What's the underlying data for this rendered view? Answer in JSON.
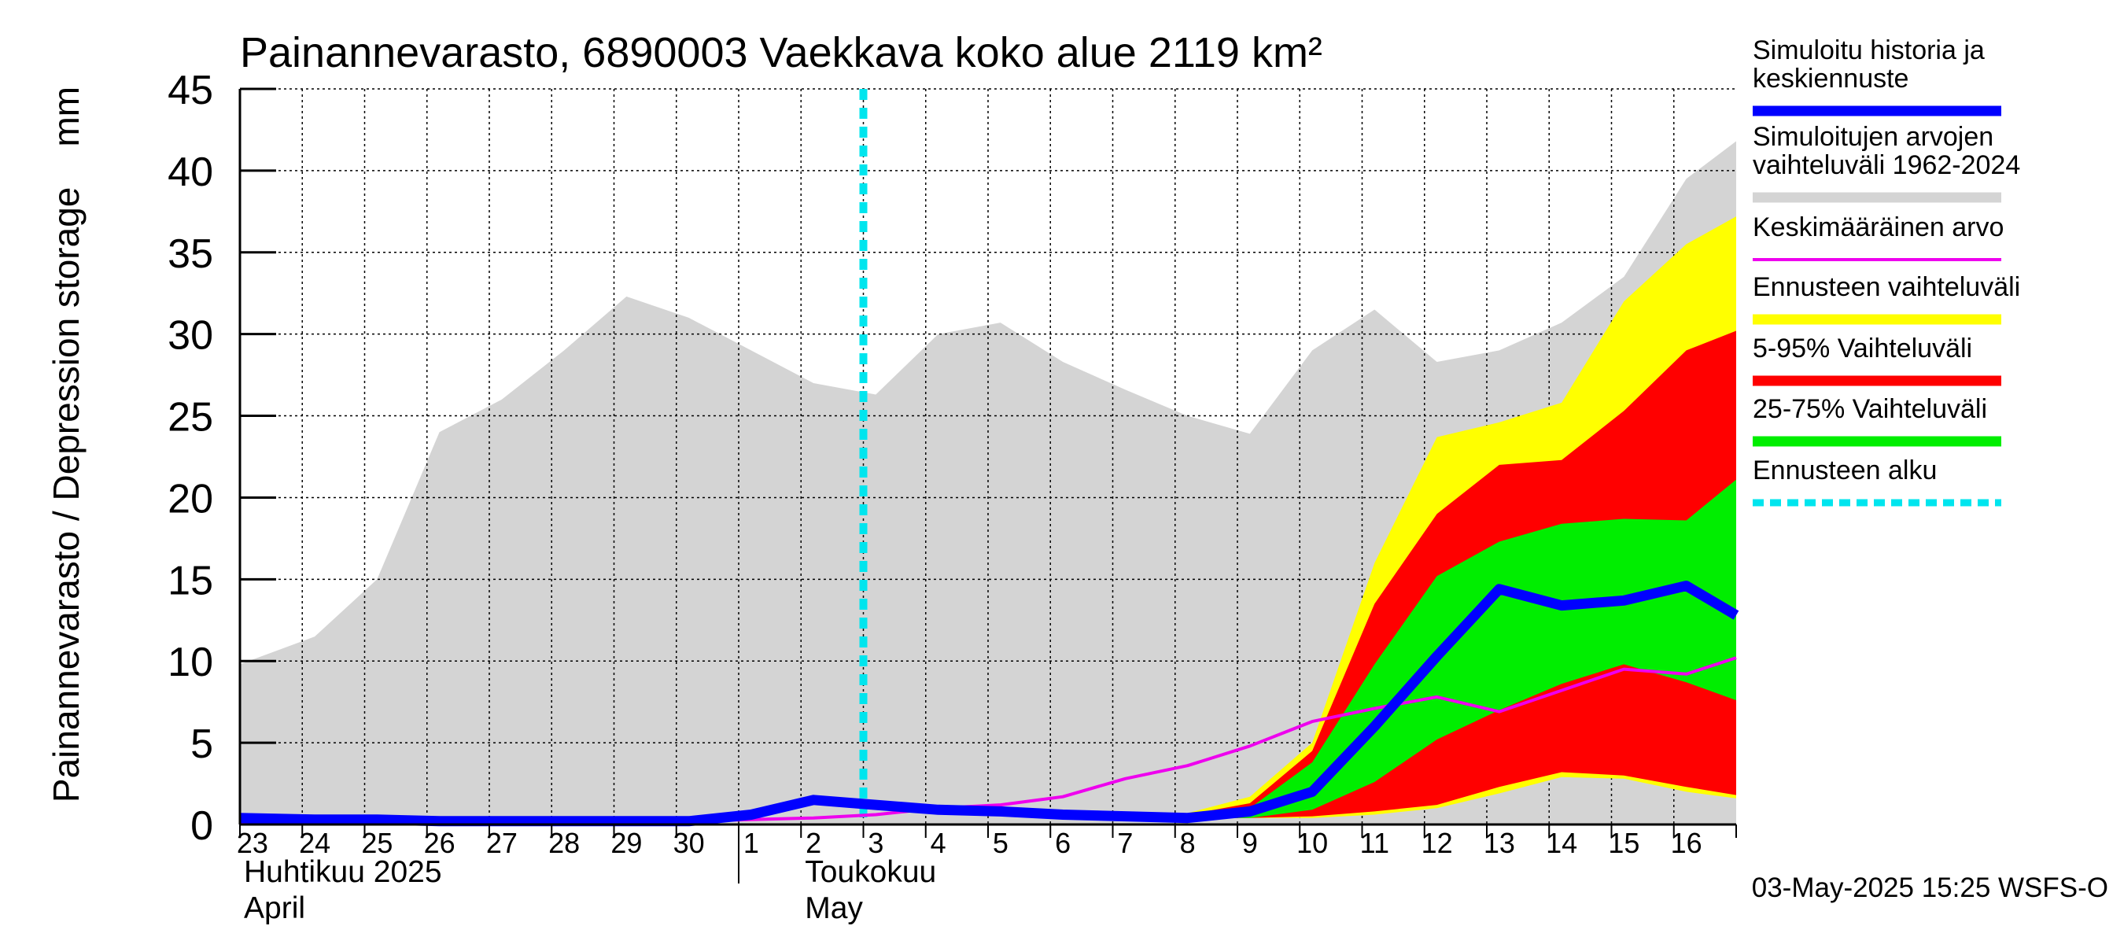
{
  "chart_data": {
    "type": "area",
    "title": "Painannevarasto, 6890003 Vaekkava koko alue 2119 km²",
    "ylabel": "Painannevarasto / Depression storage    mm",
    "ylim": [
      0,
      45
    ],
    "yticks": [
      "0",
      "5",
      "10",
      "15",
      "20",
      "25",
      "30",
      "35",
      "40",
      "45"
    ],
    "grid": true,
    "x_day_labels": [
      "23",
      "24",
      "25",
      "26",
      "27",
      "28",
      "29",
      "30",
      "1",
      "2",
      "3",
      "4",
      "5",
      "6",
      "7",
      "8",
      "9",
      "10",
      "11",
      "12",
      "13",
      "14",
      "15",
      "16"
    ],
    "x_month_labels": [
      {
        "fi": "Huhtikuu  2025",
        "en": "April",
        "day_index": 0
      },
      {
        "fi": "Toukokuu",
        "en": "May",
        "day_index": 9
      }
    ],
    "x_range": [
      -0.2,
      23.8
    ],
    "forecast_start_x": 9.8,
    "timestamp": "03-May-2025 15:25 WSFS-O",
    "colors": {
      "history_range": "#d4d4d4",
      "forecast_range": "#ffff00",
      "band_5_95": "#ff0000",
      "band_25_75": "#00ee00",
      "median": "#0000ff",
      "mean": "#ee00ee",
      "forecast_start": "#00e5ee"
    },
    "legend": [
      {
        "label_lines": [
          "Simuloitu historia ja",
          "keskiennuste"
        ],
        "key": "median"
      },
      {
        "label_lines": [
          "Simuloitujen arvojen",
          "vaihteluväli 1962-2024"
        ],
        "key": "history_range"
      },
      {
        "label_lines": [
          "Keskimääräinen arvo"
        ],
        "key": "mean"
      },
      {
        "label_lines": [
          "Ennusteen vaihteluväli"
        ],
        "key": "forecast_range"
      },
      {
        "label_lines": [
          "5-95% Vaihteluväli"
        ],
        "key": "band_5_95"
      },
      {
        "label_lines": [
          "25-75% Vaihteluväli"
        ],
        "key": "band_25_75"
      },
      {
        "label_lines": [
          "Ennusteen alku"
        ],
        "key": "forecast_start"
      }
    ],
    "series": {
      "history_range": {
        "x": [
          -0.2,
          1,
          2,
          3,
          4,
          5,
          6,
          7,
          8,
          9,
          10,
          11,
          12,
          13,
          14,
          15,
          16,
          17,
          18,
          19,
          20,
          21,
          22,
          23,
          23.8
        ],
        "upper": [
          9.8,
          11.5,
          15,
          24,
          26,
          29,
          32.3,
          31,
          29,
          27,
          26.3,
          30,
          30.7,
          28.3,
          26.6,
          25,
          23.9,
          29,
          31.5,
          28.3,
          29,
          30.7,
          33.5,
          39.5,
          41.8
        ],
        "lower": [
          0,
          0,
          0,
          0,
          0,
          0,
          0,
          0,
          0,
          0,
          0,
          0,
          0,
          0,
          0,
          0,
          0,
          0,
          0,
          0,
          0,
          0,
          0,
          0,
          0
        ]
      },
      "forecast_range": {
        "x": [
          15,
          16,
          17,
          18,
          19,
          20,
          21,
          22,
          23,
          23.8
        ],
        "upper": [
          0.7,
          1.7,
          5,
          16,
          23.7,
          24.6,
          25.8,
          32,
          35.5,
          37.2
        ],
        "lower": [
          0.4,
          0.4,
          0.4,
          0.6,
          1,
          1.9,
          2.9,
          2.8,
          2,
          1.6
        ]
      },
      "band_5_95": {
        "x": [
          15,
          16,
          17,
          18,
          19,
          20,
          21,
          22,
          23,
          23.8
        ],
        "upper": [
          0.6,
          1.3,
          4.5,
          13.5,
          19,
          22,
          22.3,
          25.3,
          29,
          30.2
        ],
        "lower": [
          0.4,
          0.4,
          0.5,
          0.8,
          1.2,
          2.3,
          3.2,
          3,
          2.3,
          1.8
        ]
      },
      "band_25_75": {
        "x": [
          15,
          16,
          17,
          18,
          19,
          20,
          21,
          22,
          23,
          23.8
        ],
        "upper": [
          0.5,
          1,
          3.8,
          9.8,
          15.2,
          17.3,
          18.4,
          18.7,
          18.6,
          21.1
        ],
        "lower": [
          0.4,
          0.4,
          0.9,
          2.6,
          5.2,
          7,
          8.6,
          9.8,
          8.7,
          7.6
        ]
      },
      "median": {
        "x": [
          -0.2,
          1,
          2,
          3,
          4,
          5,
          6,
          7,
          8,
          9,
          10,
          11,
          12,
          13,
          14,
          15,
          16,
          17,
          18,
          19,
          20,
          21,
          22,
          23,
          23.8
        ],
        "y": [
          0.4,
          0.3,
          0.3,
          0.2,
          0.2,
          0.2,
          0.2,
          0.2,
          0.6,
          1.5,
          1.2,
          0.9,
          0.8,
          0.6,
          0.5,
          0.4,
          0.8,
          2,
          6,
          10.3,
          14.4,
          13.4,
          13.7,
          14.6,
          12.8
        ]
      },
      "mean": {
        "x": [
          -0.2,
          1,
          2,
          3,
          4,
          5,
          6,
          7,
          8,
          9,
          10,
          11,
          12,
          13,
          14,
          15,
          16,
          17,
          18,
          19,
          20,
          21,
          22,
          23,
          23.8
        ],
        "y": [
          0.1,
          0.1,
          0.1,
          0.1,
          0.1,
          0.2,
          0.2,
          0.2,
          0.3,
          0.4,
          0.6,
          1,
          1.2,
          1.7,
          2.8,
          3.6,
          4.8,
          6.3,
          7.1,
          7.8,
          6.9,
          8.2,
          9.5,
          9.2,
          10.2
        ]
      }
    }
  }
}
